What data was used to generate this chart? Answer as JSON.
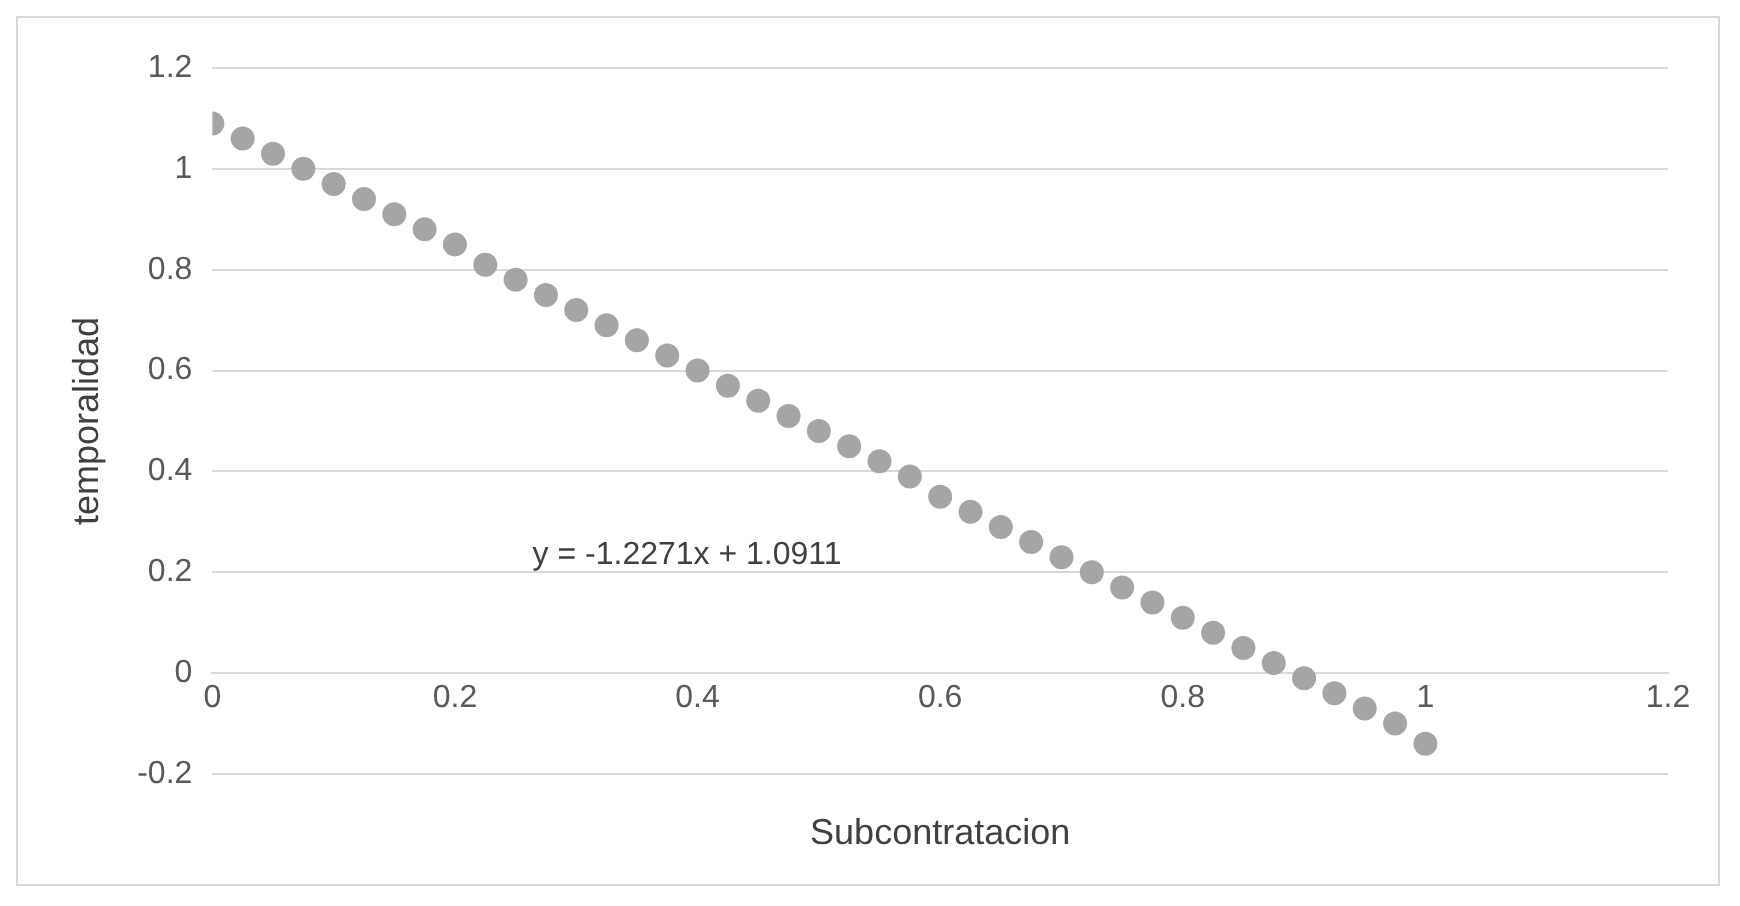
{
  "chart_data": {
    "type": "scatter",
    "xlabel": "Subcontratacion",
    "ylabel": "temporalidad",
    "x": [
      0,
      0.025,
      0.05,
      0.075,
      0.1,
      0.125,
      0.15,
      0.175,
      0.2,
      0.225,
      0.25,
      0.275,
      0.3,
      0.325,
      0.35,
      0.375,
      0.4,
      0.425,
      0.45,
      0.475,
      0.5,
      0.525,
      0.55,
      0.575,
      0.6,
      0.625,
      0.65,
      0.675,
      0.7,
      0.725,
      0.75,
      0.775,
      0.8,
      0.825,
      0.85,
      0.875,
      0.9,
      0.925,
      0.95,
      0.975,
      1
    ],
    "series": [
      {
        "color": "#a5a5a5",
        "values": [
          1.09,
          1.06,
          1.03,
          1.0,
          0.97,
          0.94,
          0.91,
          0.88,
          0.85,
          0.81,
          0.78,
          0.75,
          0.72,
          0.69,
          0.66,
          0.63,
          0.6,
          0.57,
          0.54,
          0.51,
          0.48,
          0.45,
          0.42,
          0.39,
          0.35,
          0.32,
          0.29,
          0.26,
          0.23,
          0.2,
          0.17,
          0.14,
          0.11,
          0.08,
          0.05,
          0.02,
          -0.01,
          -0.04,
          -0.07,
          -0.1,
          -0.14
        ]
      }
    ],
    "xlim": [
      0,
      1.2
    ],
    "xticks": [
      0,
      0.2,
      0.4,
      0.6,
      0.8,
      1,
      1.2
    ],
    "ylim": [
      -0.2,
      1.2
    ],
    "yticks": [
      -0.2,
      0,
      0.2,
      0.4,
      0.6,
      0.8,
      1,
      1.2
    ],
    "grid": "y",
    "legend": false,
    "marker": "circle",
    "annotations": [
      "y = -1.2271x + 1.0911"
    ]
  }
}
